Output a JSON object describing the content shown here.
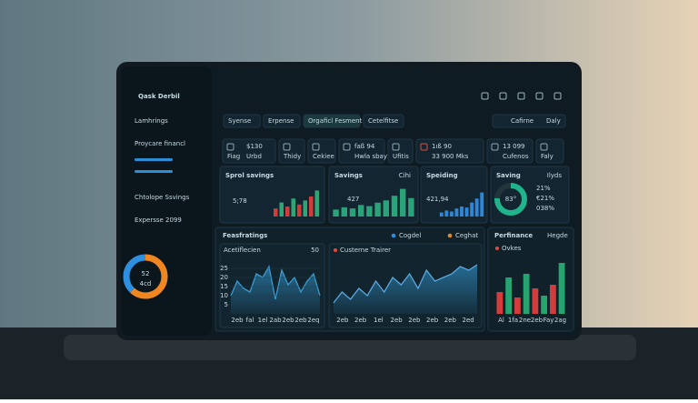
{
  "app": {
    "logo": "Qask Derbil"
  },
  "sidebar": {
    "items": [
      "Lamhrings",
      "Proycare financl",
      "Chtolope Ssvings",
      "Expersse 2099"
    ],
    "donut": {
      "value": "52",
      "label": "4cd",
      "segments": [
        62,
        38
      ]
    }
  },
  "filters": {
    "left": [
      "Syense",
      "Erpense",
      "Orgaficl Fesment",
      "Cetelfitse"
    ],
    "right": [
      "Cafirne",
      "Daly"
    ]
  },
  "stats": [
    {
      "label": "Fiag",
      "value": "$130",
      "sub": "Urbd"
    },
    {
      "label": "Thidy"
    },
    {
      "label": "Cekiee"
    },
    {
      "value": "faß 94",
      "sub": "Hwla sbay teuer"
    },
    {
      "label": "Ufitis"
    },
    {
      "value": "1ıß 90",
      "sub": "33 900 Mks"
    },
    {
      "value": "13 099",
      "sub": "Cufenos"
    },
    {
      "label": "Faly"
    }
  ],
  "cards": [
    {
      "title": "Sprol savings",
      "value": "5;78",
      "ylim": [
        0,
        30
      ],
      "values": [
        8,
        14,
        10,
        18,
        12,
        16,
        20,
        26
      ]
    },
    {
      "title": "Savings",
      "tag": "Cihi",
      "value": "427",
      "ylim": [
        0,
        30
      ],
      "values": [
        6,
        8,
        7,
        10,
        9,
        12,
        14,
        18,
        24,
        16
      ]
    },
    {
      "title": "Speiding",
      "value": "421,94",
      "ylim": [
        0,
        30
      ],
      "values": [
        4,
        6,
        5,
        8,
        10,
        9,
        14,
        18,
        24
      ]
    },
    {
      "title": "Saving",
      "tag": "Ilyds",
      "value": "83°",
      "ring": [
        76,
        24
      ],
      "lines": [
        "21%",
        "€21%",
        "038%"
      ]
    }
  ],
  "bottom": {
    "title": "Feasfratings",
    "legend": [
      "Cogdel",
      "Ceghat"
    ],
    "panels": [
      {
        "title": "Acetiflecien",
        "top_label": "50",
        "ylim": [
          0,
          30
        ],
        "yticks": [
          5,
          10,
          15,
          20,
          25
        ],
        "values": [
          10,
          18,
          14,
          12,
          22,
          20,
          26,
          8,
          24,
          16,
          20,
          12,
          18,
          22,
          10
        ],
        "categories": [
          "2eb",
          "fal",
          "1el",
          "2ab",
          "2eb",
          "2eb",
          "2eq"
        ]
      },
      {
        "title": "Custerne Trairer",
        "ylim": [
          0,
          30
        ],
        "values": [
          6,
          12,
          8,
          14,
          10,
          18,
          12,
          20,
          16,
          22,
          14,
          24,
          18,
          20,
          22,
          26,
          24,
          27
        ],
        "categories": [
          "2eb",
          "2eb",
          "1el",
          "2eb",
          "2eb",
          "2eb",
          "2eb",
          "2ed"
        ]
      },
      {
        "title": "Perfinance",
        "tag": "Hegde",
        "legend": "Ovkes",
        "ylim": [
          0,
          30
        ],
        "values": [
          12,
          20,
          9,
          22,
          14,
          10,
          16,
          28
        ],
        "categories": [
          "Al",
          "1fa",
          "2ne",
          "2eb",
          "Fay",
          "2ag"
        ]
      }
    ]
  }
}
